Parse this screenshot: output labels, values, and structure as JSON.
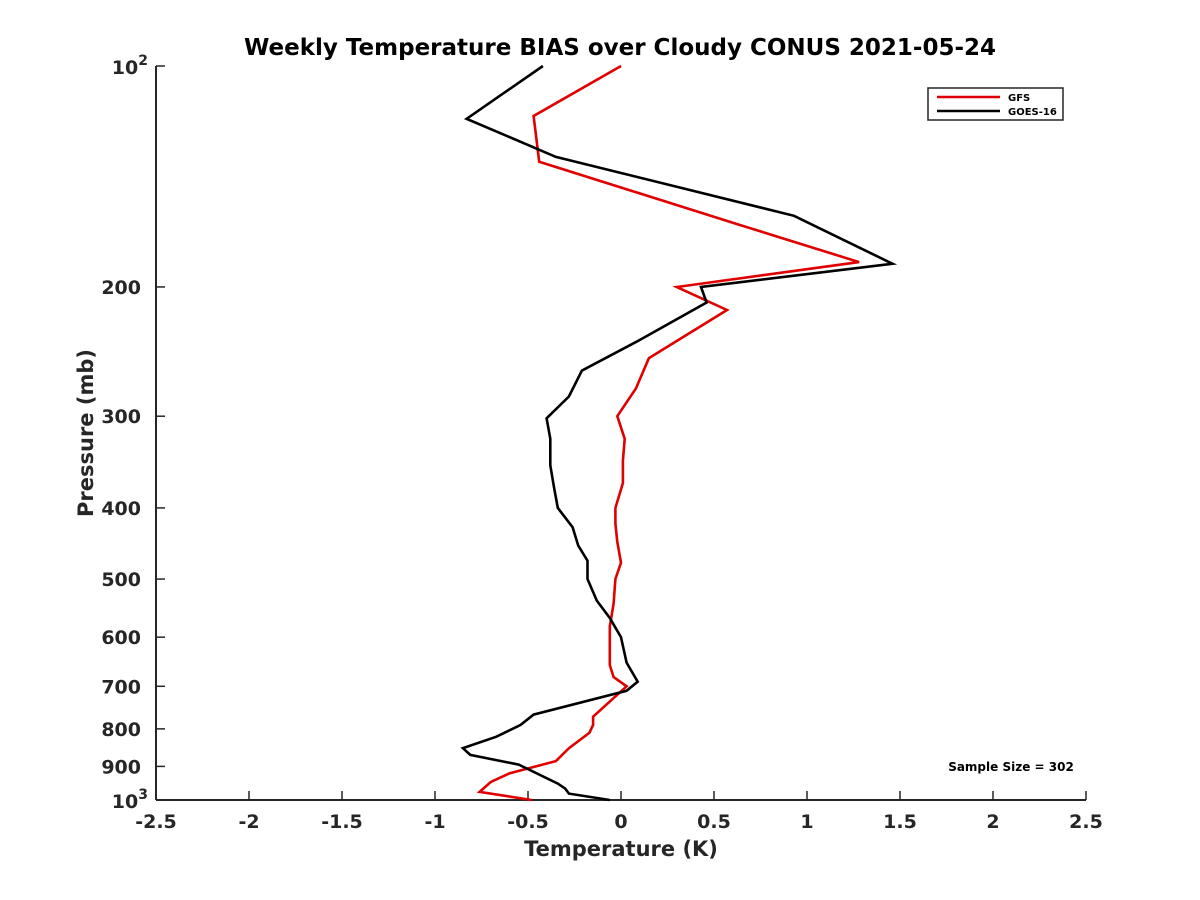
{
  "chart_data": {
    "type": "line",
    "title": "Weekly Temperature BIAS over Cloudy CONUS 2021-05-24",
    "xlabel": "Temperature (K)",
    "ylabel": "Pressure (mb)",
    "xlim": [
      -2.5,
      2.5
    ],
    "ylim": [
      100,
      1000
    ],
    "y_scale": "log",
    "y_reversed": true,
    "grid": false,
    "legend_position": "top-right",
    "x_ticks": [
      {
        "value": -2.5,
        "label": "-2.5"
      },
      {
        "value": -2,
        "label": "-2"
      },
      {
        "value": -1.5,
        "label": "-1.5"
      },
      {
        "value": -1,
        "label": "-1"
      },
      {
        "value": -0.5,
        "label": "-0.5"
      },
      {
        "value": 0,
        "label": "0"
      },
      {
        "value": 0.5,
        "label": "0.5"
      },
      {
        "value": 1,
        "label": "1"
      },
      {
        "value": 1.5,
        "label": "1.5"
      },
      {
        "value": 2,
        "label": "2"
      },
      {
        "value": 2.5,
        "label": "2.5"
      }
    ],
    "y_ticks": [
      {
        "value": 100,
        "label": "10",
        "sup": "2"
      },
      {
        "value": 200,
        "label": "200",
        "sup": ""
      },
      {
        "value": 300,
        "label": "300",
        "sup": ""
      },
      {
        "value": 400,
        "label": "400",
        "sup": ""
      },
      {
        "value": 500,
        "label": "500",
        "sup": ""
      },
      {
        "value": 600,
        "label": "600",
        "sup": ""
      },
      {
        "value": 700,
        "label": "700",
        "sup": ""
      },
      {
        "value": 800,
        "label": "800",
        "sup": ""
      },
      {
        "value": 900,
        "label": "900",
        "sup": ""
      },
      {
        "value": 1000,
        "label": "10",
        "sup": "3"
      }
    ],
    "series": [
      {
        "name": "GFS",
        "color": "#e00000",
        "points": [
          [
            0.0,
            100
          ],
          [
            -0.47,
            117
          ],
          [
            -0.44,
            135
          ],
          [
            0.65,
            165
          ],
          [
            1.28,
            185
          ],
          [
            0.3,
            200
          ],
          [
            0.57,
            215
          ],
          [
            0.15,
            250
          ],
          [
            0.08,
            275
          ],
          [
            -0.02,
            300
          ],
          [
            0.02,
            322
          ],
          [
            0.01,
            345
          ],
          [
            0.01,
            370
          ],
          [
            -0.03,
            400
          ],
          [
            -0.03,
            420
          ],
          [
            -0.02,
            445
          ],
          [
            0.0,
            475
          ],
          [
            -0.03,
            500
          ],
          [
            -0.04,
            540
          ],
          [
            -0.06,
            580
          ],
          [
            -0.06,
            620
          ],
          [
            -0.06,
            655
          ],
          [
            -0.04,
            680
          ],
          [
            0.03,
            700
          ],
          [
            -0.15,
            770
          ],
          [
            -0.15,
            790
          ],
          [
            -0.17,
            810
          ],
          [
            -0.28,
            850
          ],
          [
            -0.35,
            885
          ],
          [
            -0.6,
            920
          ],
          [
            -0.7,
            945
          ],
          [
            -0.76,
            975
          ],
          [
            -0.48,
            1000
          ]
        ]
      },
      {
        "name": "GOES-16",
        "color": "#000000",
        "points": [
          [
            -0.42,
            100
          ],
          [
            -0.83,
            118
          ],
          [
            -0.35,
            133
          ],
          [
            0.93,
            160
          ],
          [
            1.46,
            186
          ],
          [
            0.43,
            200
          ],
          [
            0.46,
            210
          ],
          [
            0.09,
            237
          ],
          [
            -0.21,
            260
          ],
          [
            -0.28,
            282
          ],
          [
            -0.4,
            302
          ],
          [
            -0.38,
            322
          ],
          [
            -0.38,
            350
          ],
          [
            -0.36,
            375
          ],
          [
            -0.34,
            400
          ],
          [
            -0.26,
            425
          ],
          [
            -0.23,
            450
          ],
          [
            -0.18,
            472
          ],
          [
            -0.18,
            500
          ],
          [
            -0.13,
            535
          ],
          [
            -0.06,
            565
          ],
          [
            0.0,
            600
          ],
          [
            0.03,
            650
          ],
          [
            0.09,
            690
          ],
          [
            0.03,
            710
          ],
          [
            -0.47,
            765
          ],
          [
            -0.54,
            790
          ],
          [
            -0.67,
            820
          ],
          [
            -0.85,
            850
          ],
          [
            -0.81,
            868
          ],
          [
            -0.55,
            895
          ],
          [
            -0.34,
            950
          ],
          [
            -0.3,
            965
          ],
          [
            -0.28,
            980
          ],
          [
            -0.06,
            1000
          ]
        ]
      }
    ],
    "annotations": [
      {
        "text": "Sample Size = 302"
      }
    ]
  }
}
